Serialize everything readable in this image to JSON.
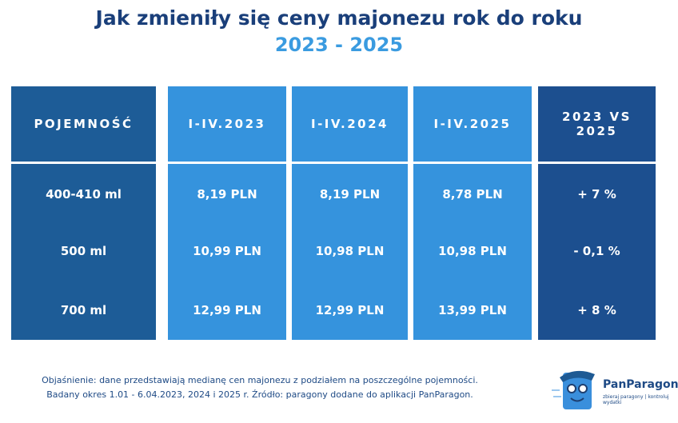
{
  "header": {
    "title": "Jak zmieniły się ceny majonezu rok do roku",
    "subtitle": "2023 - 2025"
  },
  "table": {
    "columns": [
      "POJEMNOŚĆ",
      "I-IV.2023",
      "I-IV.2024",
      "I-IV.2025",
      "2023 VS 2025"
    ],
    "rows": [
      [
        "400-410 ml",
        "8,19 PLN",
        "8,19 PLN",
        "8,78 PLN",
        "+ 7 %"
      ],
      [
        "500 ml",
        "10,99 PLN",
        "10,98 PLN",
        "10,98 PLN",
        "- 0,1 %"
      ],
      [
        "700 ml",
        "12,99 PLN",
        "12,99 PLN",
        "13,99 PLN",
        "+ 8 %"
      ]
    ]
  },
  "footnote": [
    "Objaśnienie: dane przedstawiają medianę cen majonezu z podziałem na poszczególne pojemności.",
    "Badany okres 1.01 - 6.04.2023, 2024 i 2025 r. Źródło: paragony dodane do aplikacji PanParagon."
  ],
  "logo": {
    "name": "PanParagon",
    "tagline": "zbieraj paragony | kontroluj wydatki"
  }
}
